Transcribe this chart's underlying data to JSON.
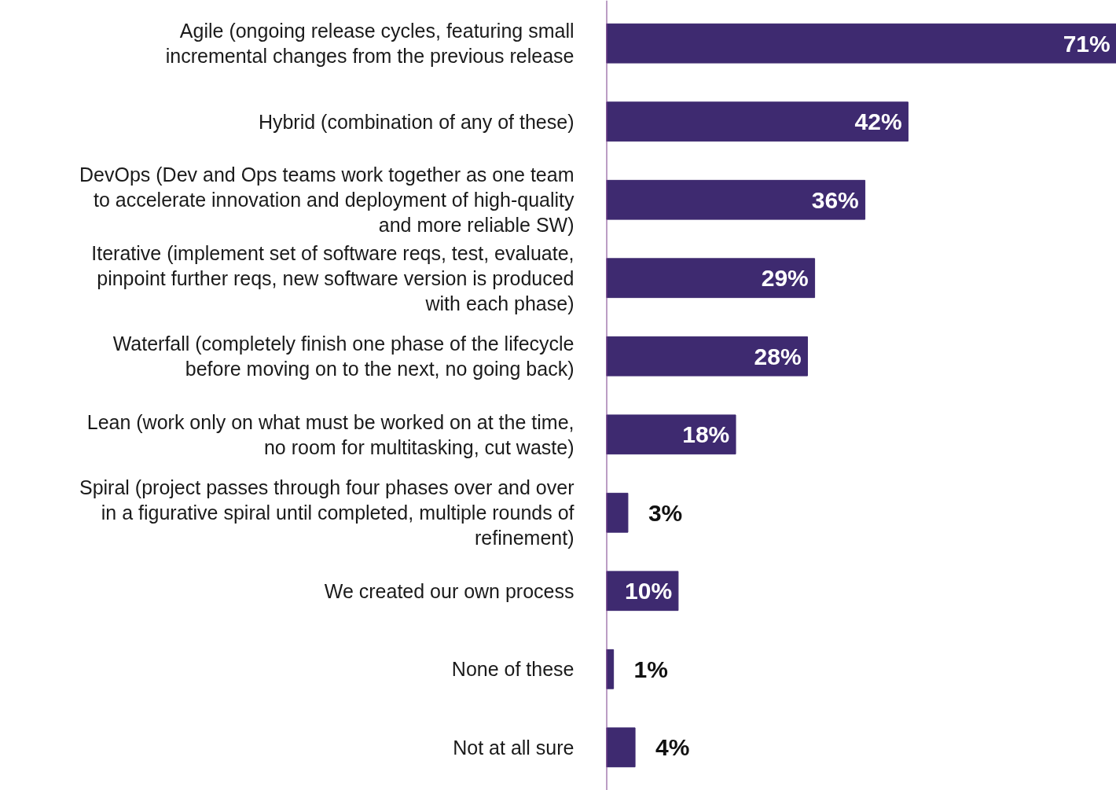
{
  "chart_data": {
    "type": "bar",
    "orientation": "horizontal",
    "categories": [
      "Agile (ongoing release cycles, featuring small\nincremental changes from the previous release",
      "Hybrid (combination of any of these)",
      "DevOps (Dev and Ops teams work together as one team\nto accelerate innovation and deployment of high-quality\nand more reliable SW)",
      "Iterative (implement set of software reqs, test, evaluate,\npinpoint further reqs, new software version is produced\nwith each phase)",
      "Waterfall (completely finish one phase of the lifecycle\nbefore moving on to the next, no going back)",
      "Lean (work only on what must be worked on at the time,\nno room for multitasking, cut waste)",
      "Spiral (project passes through four phases over and over\nin a figurative spiral until completed, multiple rounds of\nrefinement)",
      "We created our own process",
      "None of these",
      "Not at all sure"
    ],
    "values": [
      71,
      42,
      36,
      29,
      28,
      18,
      3,
      10,
      1,
      4
    ],
    "value_labels": [
      "71%",
      "42%",
      "36%",
      "29%",
      "28%",
      "18%",
      "3%",
      "10%",
      "1%",
      "4%"
    ],
    "color": "#3e2a70",
    "xlim": [
      0,
      71
    ],
    "tick_labels": "y",
    "grid": false
  }
}
